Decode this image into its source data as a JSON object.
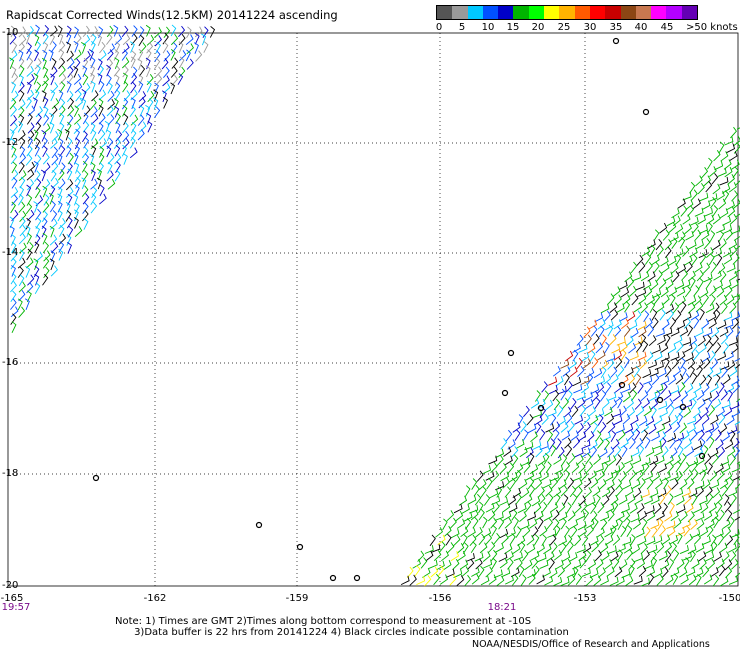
{
  "title": "Rapidscat Corrected Winds(12.5KM) 20141224 ascending",
  "legend": {
    "colors": [
      "#555555",
      "#9a9a9a",
      "#00c8ff",
      "#0050ff",
      "#0000c8",
      "#00b400",
      "#00ff00",
      "#ffff00",
      "#ffb400",
      "#ff5a00",
      "#ff0000",
      "#c80000",
      "#8c4614",
      "#c87850",
      "#ff00ff",
      "#b400ff",
      "#6400b4"
    ],
    "labels": [
      "0",
      "5",
      "10",
      "15",
      "20",
      "25",
      "30",
      "35",
      "40",
      "45",
      ">50 knots"
    ]
  },
  "axes": {
    "y_labels": [
      "-10",
      "-12",
      "-14",
      "-16",
      "-18",
      "-20"
    ],
    "x_labels": [
      "-165",
      "-162",
      "-159",
      "-156",
      "-153",
      "-150"
    ],
    "time_labels": [
      "19:57",
      "18:21"
    ]
  },
  "notes": "Note: 1) Times are GMT 2)Times along bottom correspond to measurement at -10S\n      3)Data buffer is 22 hrs from 20141224 4) Black circles indicate possible contamination",
  "credit": "NOAA/NESDIS/Office of Research and Applications"
}
